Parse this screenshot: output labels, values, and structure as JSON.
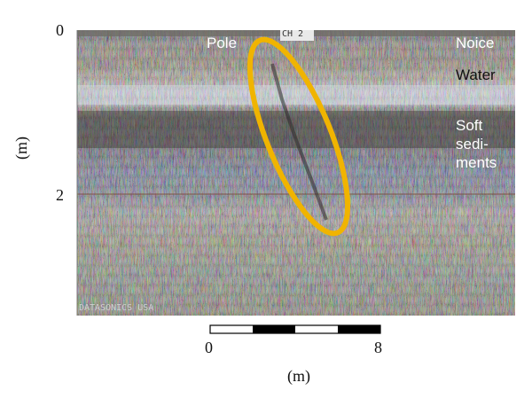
{
  "y_axis": {
    "ticks": [
      "0",
      "2"
    ],
    "unit": "(m)"
  },
  "x_axis": {
    "ticks": [
      "0",
      "8"
    ],
    "unit": "(m)"
  },
  "radargram": {
    "channel_label": "CH 2",
    "corner_text": "DATASONICS USA",
    "labels": {
      "pole": "Pole",
      "noice": "Noice",
      "water": "Water",
      "soft_line1": "Soft",
      "soft_line2": "sedi-",
      "soft_line3": "ments"
    },
    "ellipse_color": "#f0b400"
  }
}
